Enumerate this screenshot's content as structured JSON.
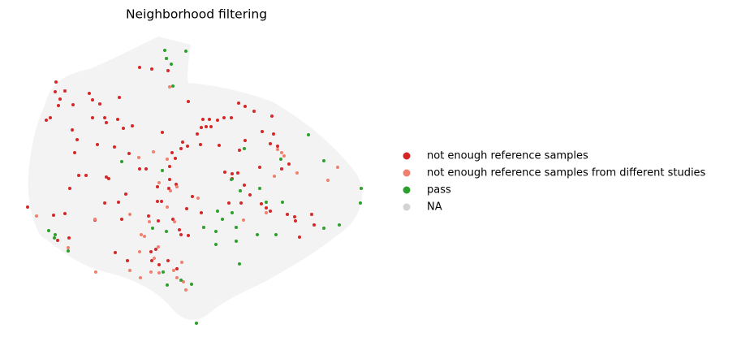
{
  "chart_data": {
    "type": "scatter",
    "title": "Neighborhood filtering",
    "xlim": [
      30,
      450
    ],
    "ylim": [
      400,
      45
    ],
    "series": [
      {
        "name": "not enough reference samples",
        "color": "#d62728",
        "x": [
          172,
          187,
          207,
          69,
          80,
          68,
          110,
          74,
          72,
          90,
          114,
          123,
          147,
          232,
          294,
          302,
          313,
          335,
          62,
          57,
          114,
          129,
          131,
          145,
          152,
          163,
          89,
          200,
          250,
          258,
          268,
          276,
          285,
          248,
          254,
          260,
          243,
          323,
          337,
          95,
          120,
          225,
          223,
          231,
          247,
          270,
          302,
          295,
          333,
          92,
          141,
          159,
          212,
          216,
          180,
          172,
          131,
          134,
          97,
          106,
          209,
          209,
          208,
          277,
          286,
          293,
          286,
          301,
          320,
          347,
          342,
          356,
          86,
          155,
          194,
          217,
          237,
          129,
          146,
          194,
          199,
          282,
          297,
          308,
          322,
          328,
          333,
          66,
          80,
          117,
          150,
          183,
          195,
          213,
          230,
          248,
          354,
          363,
          364,
          384,
          387,
          369,
          221,
          232,
          223,
          85,
          71,
          142,
          157,
          186,
          192,
          187,
          207,
          196,
          218,
          34
        ],
        "y": [
          83,
          85,
          87,
          101,
          112,
          113,
          115,
          122,
          130,
          129,
          123,
          128,
          120,
          125,
          127,
          131,
          137,
          143,
          145,
          148,
          145,
          145,
          151,
          147,
          158,
          155,
          160,
          163,
          147,
          147,
          148,
          145,
          145,
          157,
          156,
          156,
          165,
          162,
          165,
          172,
          178,
          175,
          183,
          180,
          178,
          179,
          173,
          185,
          177,
          188,
          181,
          189,
          188,
          195,
          208,
          208,
          218,
          220,
          216,
          216,
          205,
          221,
          232,
          212,
          214,
          213,
          220,
          228,
          206,
          208,
          180,
          202,
          232,
          239,
          230,
          227,
          242,
          250,
          249,
          248,
          248,
          250,
          250,
          240,
          251,
          256,
          260,
          265,
          263,
          271,
          270,
          266,
          272,
          270,
          257,
          262,
          264,
          267,
          272,
          264,
          277,
          292,
          283,
          290,
          289,
          293,
          296,
          311,
          321,
          310,
          307,
          321,
          321,
          326,
          331,
          255
        ]
      },
      {
        "name": "not enough reference samples from different studies",
        "color": "#f08070",
        "x": [
          209,
          189,
          171,
          206,
          196,
          218,
          210,
          244,
          342,
          347,
          350,
          338,
          366,
          416,
          404,
          45,
          160,
          206,
          215,
          300,
          328,
          117,
          184,
          174,
          178,
          195,
          190,
          172,
          224,
          214,
          84,
          118,
          160,
          173,
          218,
          196,
          226,
          229,
          186
        ],
        "y": [
          107,
          187,
          194,
          196,
          225,
          230,
          235,
          244,
          184,
          188,
          192,
          217,
          213,
          206,
          222,
          266,
          264,
          255,
          273,
          271,
          262,
          270,
          273,
          289,
          291,
          304,
          318,
          310,
          323,
          333,
          305,
          335,
          333,
          342,
          342,
          336,
          347,
          357,
          335
        ]
      },
      {
        "name": "pass",
        "color": "#2ca02c",
        "x": [
          203,
          229,
          205,
          211,
          213,
          380,
          301,
          346,
          399,
          150,
          200,
          320,
          285,
          296,
          328,
          348,
          445,
          444,
          268,
          286,
          274,
          418,
          399,
          251,
          291,
          266,
          205,
          317,
          340,
          188,
          60,
          68,
          67,
          291,
          84,
          266,
          201,
          223,
          236,
          206,
          295,
          242
        ],
        "y": [
          62,
          63,
          72,
          79,
          106,
          166,
          183,
          196,
          198,
          199,
          210,
          232,
          221,
          235,
          249,
          249,
          232,
          250,
          260,
          262,
          270,
          277,
          281,
          280,
          280,
          285,
          285,
          289,
          289,
          281,
          284,
          289,
          293,
          297,
          309,
          301,
          335,
          345,
          350,
          351,
          325,
          398
        ]
      },
      {
        "name": "NA",
        "color": "#d3d3d3",
        "x": [],
        "y": []
      }
    ]
  }
}
